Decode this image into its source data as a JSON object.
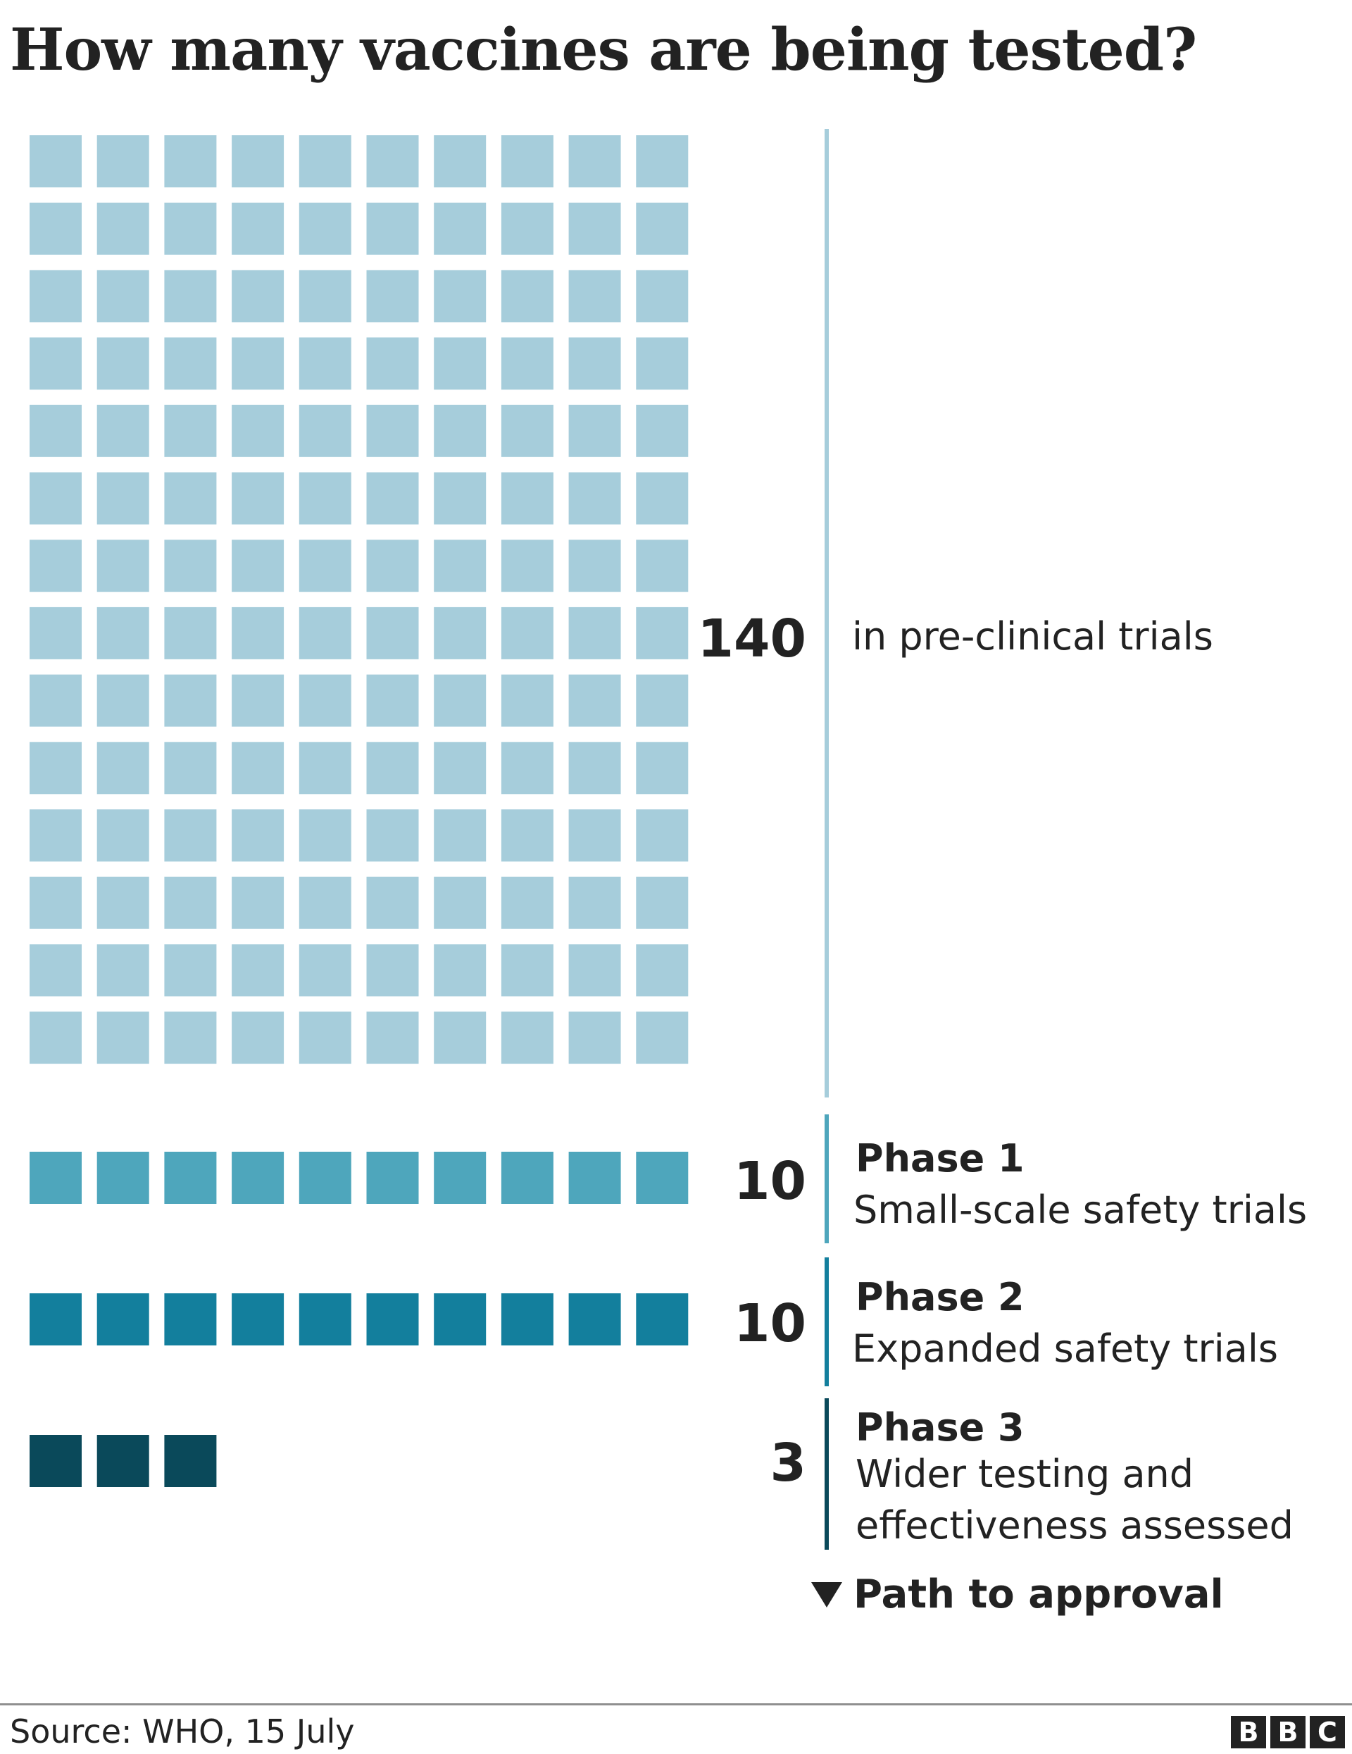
{
  "title": "How many vaccines are being tested?",
  "chart_data": {
    "type": "waffle",
    "columns": 10,
    "units_per_square": 1,
    "series": [
      {
        "name": "in pre-clinical trials",
        "count": 140,
        "value_label": "140",
        "color": "#a6cddb"
      },
      {
        "name": "Phase 1",
        "description": "Small-scale safety trials",
        "count": 10,
        "value_label": "10",
        "color": "#4ea6bc"
      },
      {
        "name": "Phase 2",
        "description": "Expanded safety trials",
        "count": 10,
        "value_label": "10",
        "color": "#137f9d"
      },
      {
        "name": "Phase 3",
        "description_lines": [
          "Wider testing and",
          "effectiveness assessed"
        ],
        "count": 3,
        "value_label": "3",
        "color": "#0a495a"
      }
    ],
    "annotation": "Path to approval"
  },
  "footer": {
    "source": "Source: WHO, 15 July",
    "logo": [
      "B",
      "B",
      "C"
    ]
  }
}
